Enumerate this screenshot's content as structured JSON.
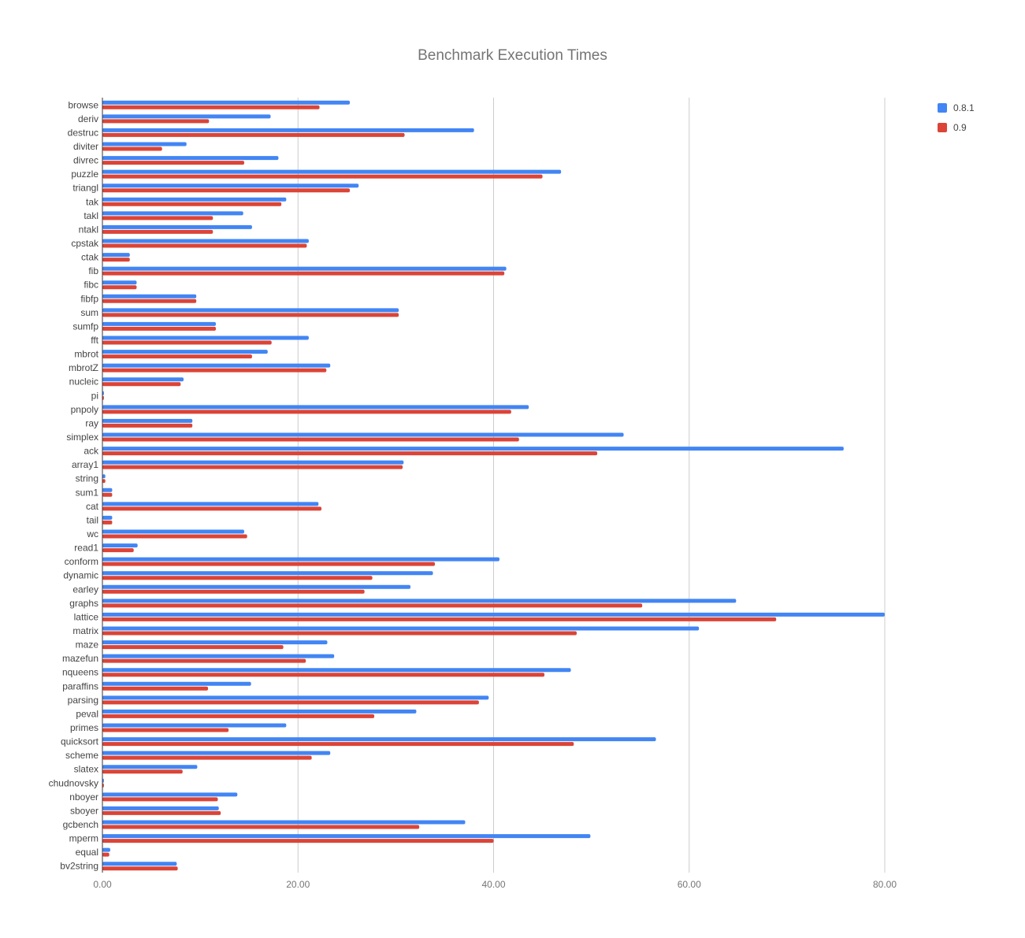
{
  "chart_data": {
    "type": "bar",
    "orientation": "horizontal",
    "title": "Benchmark Execution Times",
    "xlabel": "",
    "ylabel": "",
    "xlim": [
      0,
      80
    ],
    "x_ticks": [
      "0.00",
      "20.00",
      "40.00",
      "60.00",
      "80.00"
    ],
    "grid": true,
    "legend_position": "right",
    "categories": [
      "browse",
      "deriv",
      "destruc",
      "diviter",
      "divrec",
      "puzzle",
      "triangl",
      "tak",
      "takl",
      "ntakl",
      "cpstak",
      "ctak",
      "fib",
      "fibc",
      "fibfp",
      "sum",
      "sumfp",
      "fft",
      "mbrot",
      "mbrotZ",
      "nucleic",
      "pi",
      "pnpoly",
      "ray",
      "simplex",
      "ack",
      "array1",
      "string",
      "sum1",
      "cat",
      "tail",
      "wc",
      "read1",
      "conform",
      "dynamic",
      "earley",
      "graphs",
      "lattice",
      "matrix",
      "maze",
      "mazefun",
      "nqueens",
      "paraffins",
      "parsing",
      "peval",
      "primes",
      "quicksort",
      "scheme",
      "slatex",
      "chudnovsky",
      "nboyer",
      "sboyer",
      "gcbench",
      "mperm",
      "equal",
      "bv2string"
    ],
    "series": [
      {
        "name": "0.8.1",
        "color": "#4285f4",
        "values": [
          25.3,
          17.2,
          38.0,
          8.6,
          18.0,
          46.9,
          26.2,
          18.8,
          14.4,
          15.3,
          21.1,
          2.8,
          41.3,
          3.5,
          9.6,
          30.3,
          11.6,
          21.1,
          16.9,
          23.3,
          8.3,
          0.15,
          43.6,
          9.2,
          53.3,
          75.8,
          30.8,
          0.3,
          1.0,
          22.1,
          1.0,
          14.5,
          3.6,
          40.6,
          33.8,
          31.5,
          64.8,
          80.0,
          61.0,
          23.0,
          23.7,
          47.9,
          15.2,
          39.5,
          32.1,
          18.8,
          56.6,
          23.3,
          9.7,
          0.15,
          13.8,
          11.9,
          37.1,
          49.9,
          0.8,
          7.6
        ]
      },
      {
        "name": "0.9",
        "color": "#db4437",
        "values": [
          22.2,
          10.9,
          30.9,
          6.1,
          14.5,
          45.0,
          25.3,
          18.3,
          11.3,
          11.3,
          20.9,
          2.8,
          41.1,
          3.5,
          9.6,
          30.3,
          11.6,
          17.3,
          15.3,
          22.9,
          8.0,
          0.15,
          41.8,
          9.2,
          42.6,
          50.6,
          30.7,
          0.3,
          1.0,
          22.4,
          1.0,
          14.8,
          3.2,
          34.0,
          27.6,
          26.8,
          55.2,
          68.9,
          48.5,
          18.5,
          20.8,
          45.2,
          10.8,
          38.5,
          27.8,
          12.9,
          48.2,
          21.4,
          8.2,
          0.15,
          11.8,
          12.1,
          32.4,
          40.0,
          0.7,
          7.7
        ]
      }
    ]
  }
}
